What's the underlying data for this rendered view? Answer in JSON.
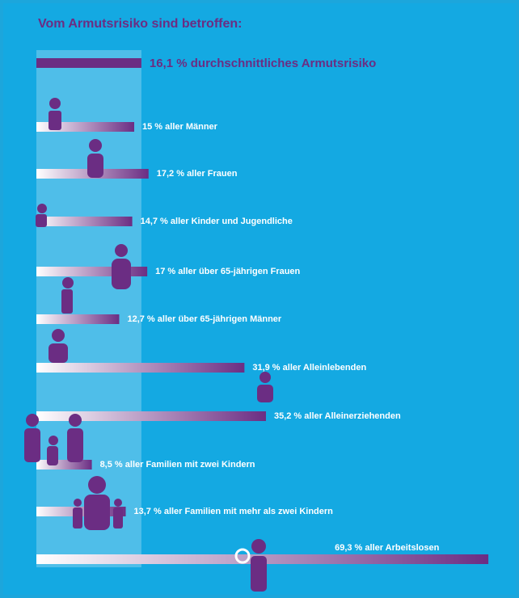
{
  "chart_data": {
    "type": "bar",
    "orientation": "horizontal",
    "title": "Vom Armutsrisiko sind betroffen:",
    "reference": {
      "value": 16.1,
      "value_label": "16,1 %",
      "label": "durchschnittliches Armutsrisiko"
    },
    "categories": [
      "aller Männer",
      "aller Frauen",
      "aller Kinder und Jugendliche",
      "aller über 65-jährigen Frauen",
      "aller über 65-jährigen Männer",
      "aller Alleinlebenden",
      "aller Alleinerziehenden",
      "aller Familien mit zwei Kindern",
      "aller Familien mit mehr als zwei Kindern",
      "aller Arbeitslosen"
    ],
    "values": [
      15,
      17.2,
      14.7,
      17,
      12.7,
      31.9,
      35.2,
      8.5,
      13.7,
      69.3
    ],
    "value_labels": [
      "15 %",
      "17,2 %",
      "14,7 %",
      "17 %",
      "12,7 %",
      "31,9 %",
      "35,2 %",
      "8,5 %",
      "13,7 %",
      "69,3 %"
    ],
    "color": "#6b2d83",
    "xlim": [
      0,
      74
    ]
  }
}
